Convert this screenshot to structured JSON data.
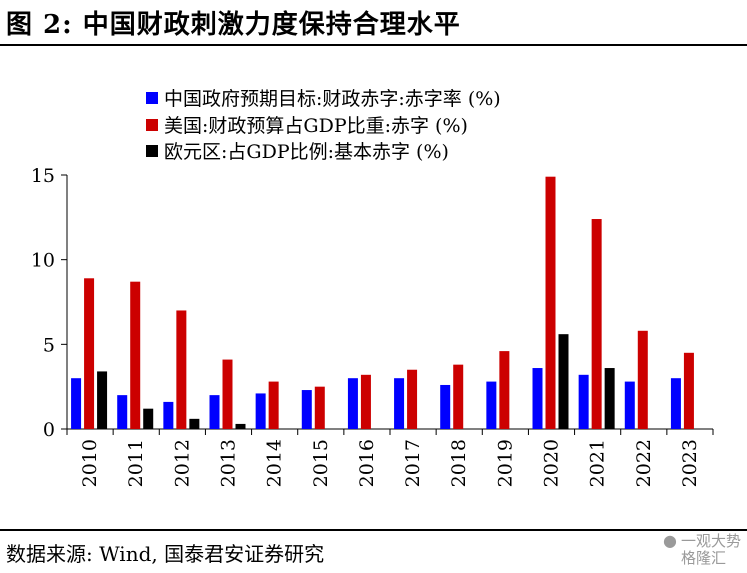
{
  "header": {
    "title": "图 2:  中国财政刺激力度保持合理水平"
  },
  "footer": {
    "source": "数据来源: Wind, 国泰君安证券研究"
  },
  "watermark": {
    "line1": "一观大势",
    "line2": "格隆汇"
  },
  "colors": {
    "china": "#0000ff",
    "usa": "#cc0000",
    "euro": "#000000"
  },
  "chart_data": {
    "type": "bar",
    "categories": [
      "2010",
      "2011",
      "2012",
      "2013",
      "2014",
      "2015",
      "2016",
      "2017",
      "2018",
      "2019",
      "2020",
      "2021",
      "2022",
      "2023"
    ],
    "ylim": [
      0,
      15
    ],
    "yticks": [
      0,
      5,
      10,
      15
    ],
    "legend_position": "top",
    "grid": false,
    "series": [
      {
        "name": "中国政府预期目标:财政赤字:赤字率 (%)",
        "color": "#0000ff",
        "values": [
          3.0,
          2.0,
          1.6,
          2.0,
          2.1,
          2.3,
          3.0,
          3.0,
          2.6,
          2.8,
          3.6,
          3.2,
          2.8,
          3.0
        ]
      },
      {
        "name": "美国:财政预算占GDP比重:赤字 (%)",
        "color": "#cc0000",
        "values": [
          8.9,
          8.7,
          7.0,
          4.1,
          2.8,
          2.5,
          3.2,
          3.5,
          3.8,
          4.6,
          14.9,
          12.4,
          5.8,
          4.5
        ]
      },
      {
        "name": "欧元区:占GDP比例:基本赤字 (%)",
        "color": "#000000",
        "values": [
          3.4,
          1.2,
          0.6,
          0.3,
          null,
          null,
          null,
          null,
          null,
          null,
          5.6,
          3.6,
          null,
          null
        ]
      }
    ]
  }
}
